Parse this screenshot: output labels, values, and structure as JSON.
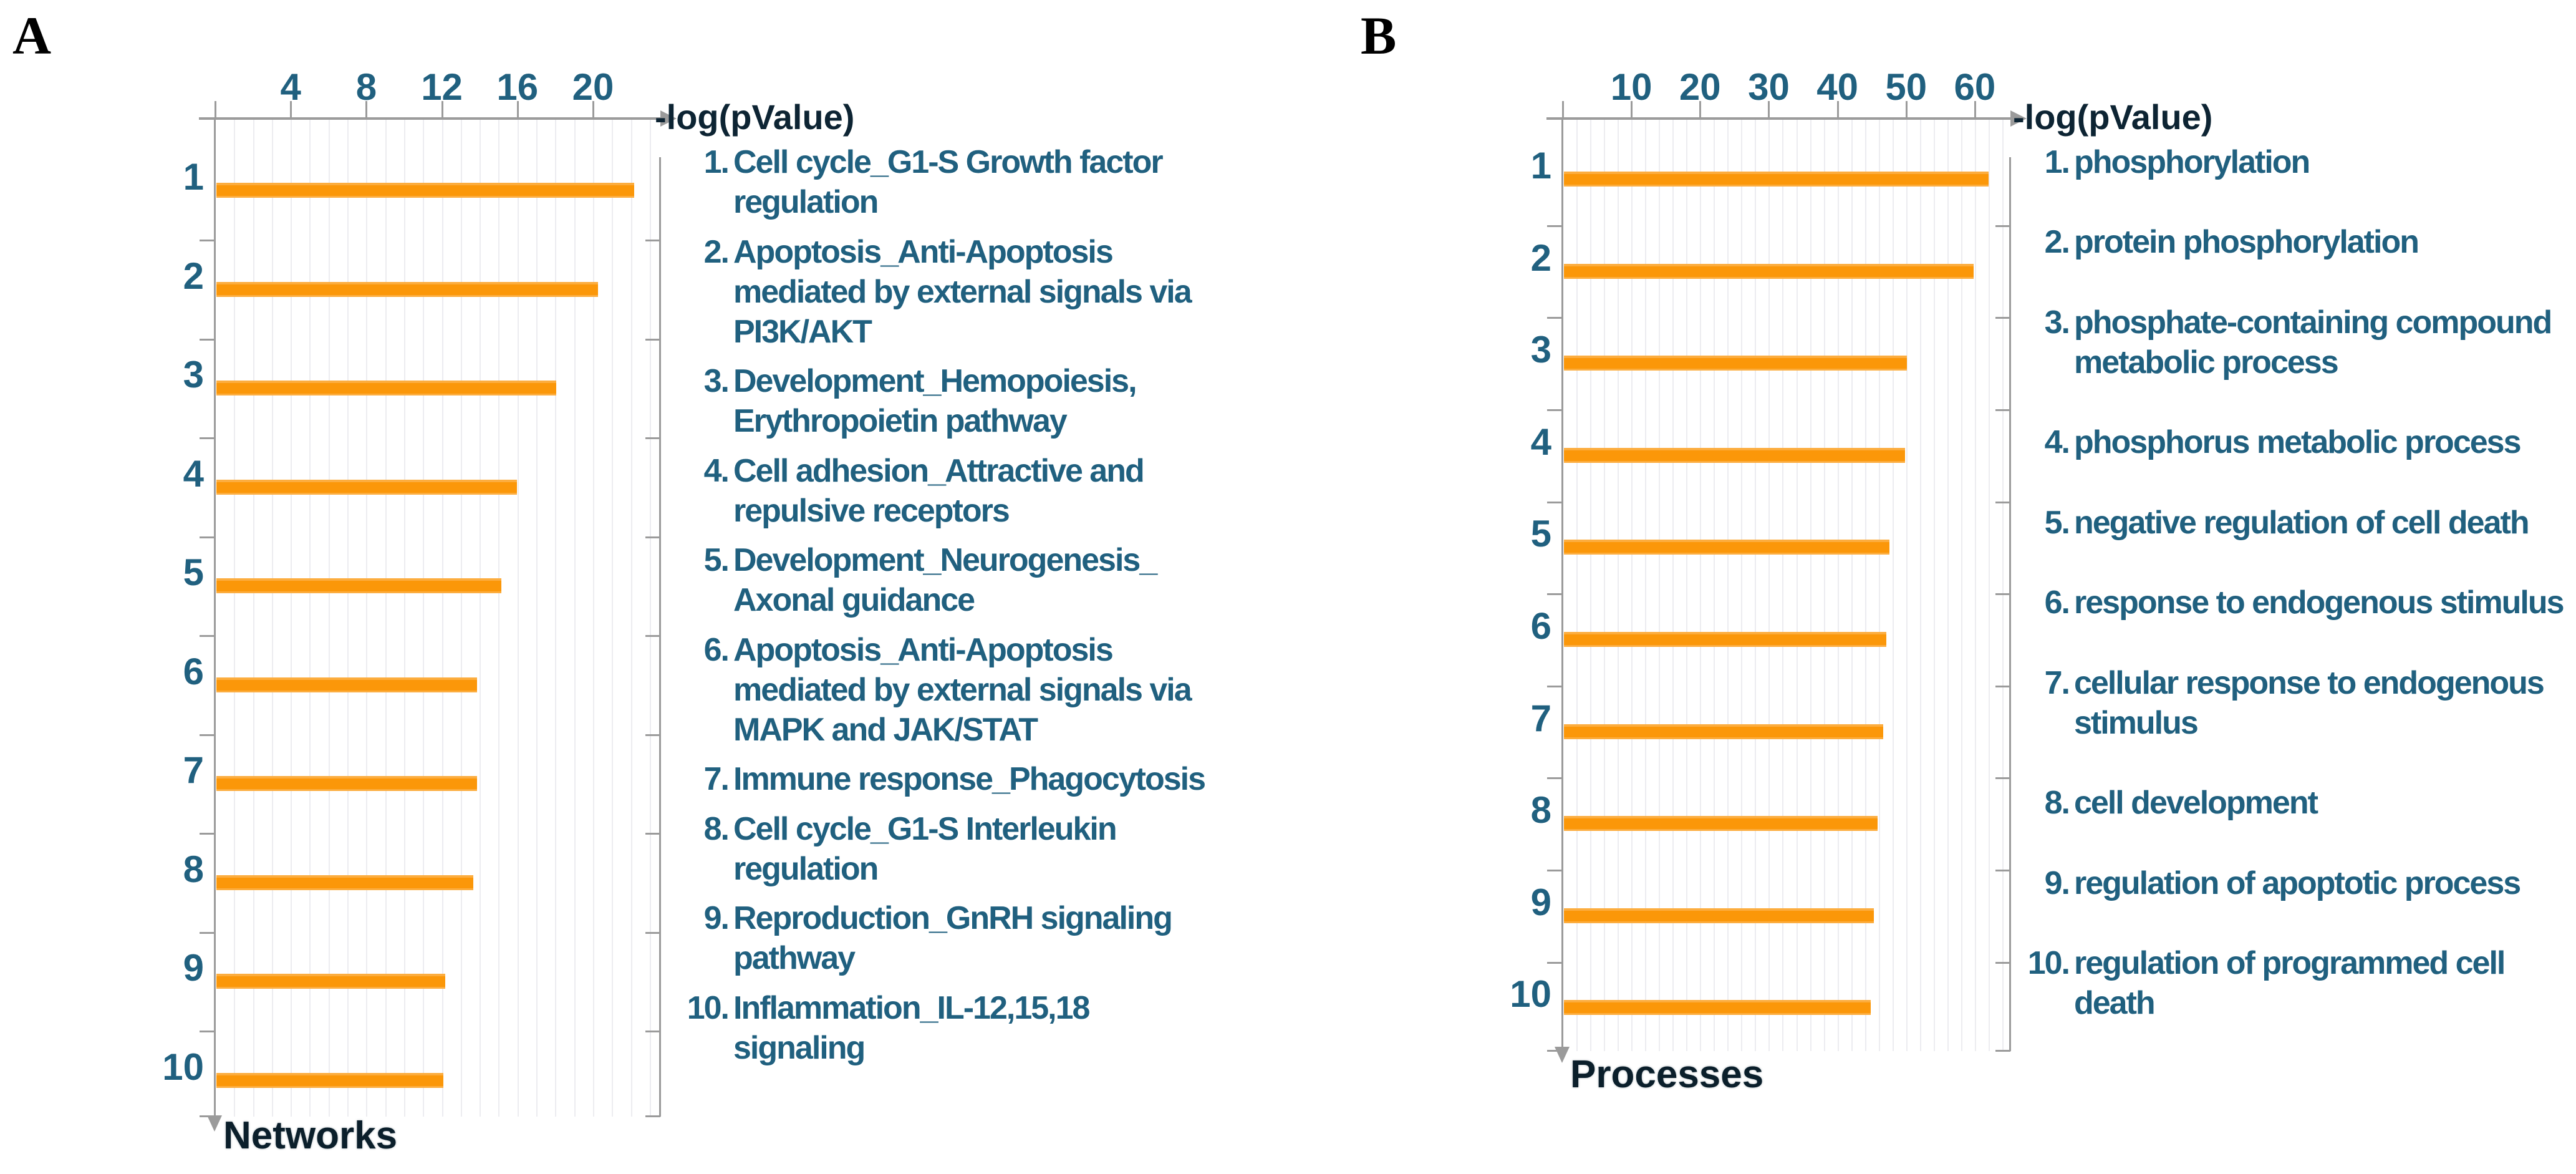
{
  "chart_data": [
    {
      "type": "bar",
      "orientation": "horizontal",
      "panel_label": "A",
      "axis_title": "-log(pValue)",
      "category_axis_label": "Networks",
      "xlim": [
        0,
        23.5
      ],
      "xticks": [
        4,
        8,
        12,
        16,
        20
      ],
      "grid_step": 1,
      "grid": true,
      "legend_position": "none",
      "categories": [
        "1",
        "2",
        "3",
        "4",
        "5",
        "6",
        "7",
        "8",
        "9",
        "10"
      ],
      "values": [
        22.1,
        20.2,
        18.0,
        15.9,
        15.1,
        13.8,
        13.8,
        13.6,
        12.1,
        12.0
      ],
      "labels": [
        "Cell cycle_G1-S Growth factor regulation",
        "Apoptosis_Anti-Apoptosis mediated by external signals via PI3K/AKT",
        "Development_Hemopoiesis, Erythropoietin pathway",
        "Cell adhesion_Attractive and repulsive receptors",
        "Development_Neurogenesis_ Axonal guidance",
        "Apoptosis_Anti-Apoptosis mediated by external signals via MAPK and JAK/STAT",
        "Immune response_Phagocytosis",
        "Cell cycle_G1-S Interleukin regulation",
        "Reproduction_GnRH signaling pathway",
        "Inflammation_IL-12,15,18 signaling"
      ]
    },
    {
      "type": "bar",
      "orientation": "horizontal",
      "panel_label": "B",
      "axis_title": "-log(pValue)",
      "category_axis_label": "Processes",
      "xlim": [
        0,
        65
      ],
      "xticks": [
        10,
        20,
        30,
        40,
        50,
        60
      ],
      "grid_step": 2,
      "grid": true,
      "legend_position": "none",
      "categories": [
        "1",
        "2",
        "3",
        "4",
        "5",
        "6",
        "7",
        "8",
        "9",
        "10"
      ],
      "values": [
        61.8,
        59.6,
        49.9,
        49.7,
        47.4,
        46.9,
        46.5,
        45.7,
        45.1,
        44.7
      ],
      "labels": [
        "phosphorylation",
        "protein phosphorylation",
        "phosphate-containing compound metabolic process",
        "phosphorus metabolic process",
        "negative regulation of cell death",
        "response to endogenous stimulus",
        "cellular response to endogenous stimulus",
        "cell development",
        "regulation of apoptotic process",
        "regulation of programmed cell death"
      ]
    }
  ],
  "ui": {
    "bar_color": "#FB9709",
    "bar_highlight": "rgba(255,255,255,0.22)",
    "tick_text_color": "#20607F",
    "list_text_color": "#20607F",
    "axis_title_color": "#0D2433",
    "bottom_label_color": "#0B1F2B",
    "panel_label_color": "#000000",
    "axis_line_color": "#9B9B9B",
    "gridline_color": "#ECECF0",
    "background": "#FFFFFF"
  }
}
